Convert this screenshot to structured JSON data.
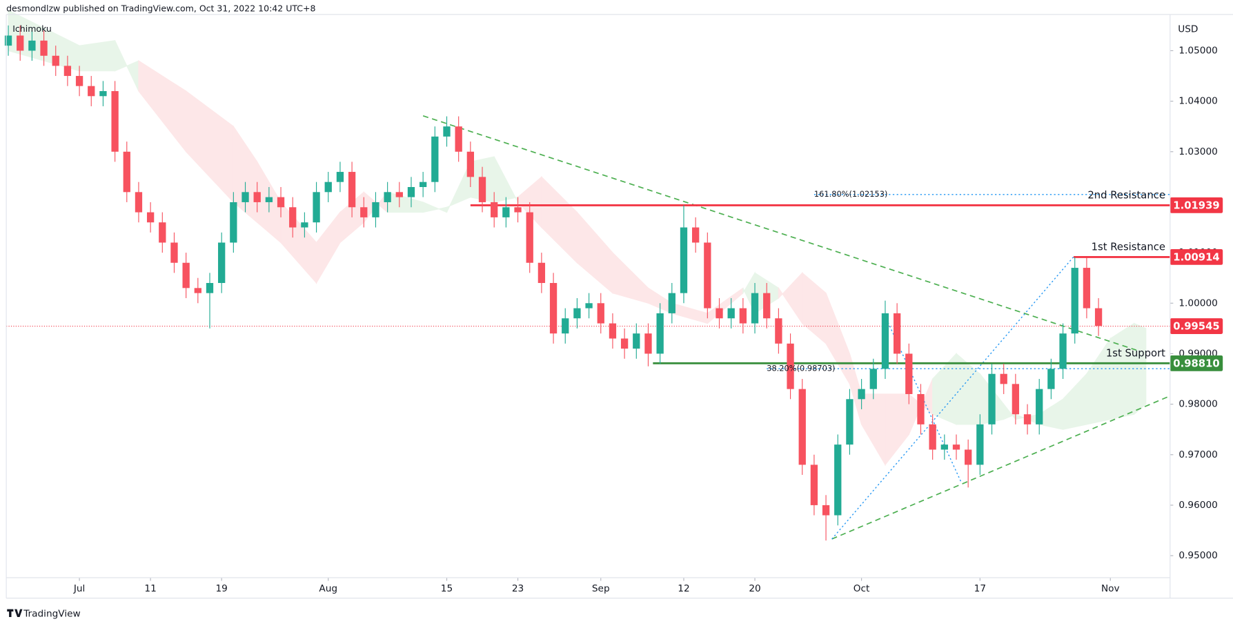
{
  "header": {
    "text": "desmondlzw published on TradingView.com, Oct 31, 2022 10:42 UTC+8",
    "indicator": "Ichimoku"
  },
  "footer": {
    "logo": "TradingView"
  },
  "chart_data": {
    "type": "candlestick",
    "currency": "USD",
    "up_color": "#22ab94",
    "down_color": "#f7525f",
    "xlim": [
      -6.17,
      92.04
    ],
    "ylim": [
      0.94564,
      1.05717
    ],
    "xticks": [
      {
        "value": 0,
        "label": "Jul"
      },
      {
        "value": 6,
        "label": "11"
      },
      {
        "value": 12,
        "label": "19"
      },
      {
        "value": 21,
        "label": "Aug"
      },
      {
        "value": 31,
        "label": "15"
      },
      {
        "value": 37,
        "label": "23"
      },
      {
        "value": 44,
        "label": "Sep"
      },
      {
        "value": 51,
        "label": "12"
      },
      {
        "value": 57,
        "label": "20"
      },
      {
        "value": 66,
        "label": "Oct"
      },
      {
        "value": 76,
        "label": "17"
      },
      {
        "value": 87,
        "label": "Nov"
      }
    ],
    "yticks": [
      {
        "value": 0.95,
        "label": "0.95000"
      },
      {
        "value": 0.96,
        "label": "0.96000"
      },
      {
        "value": 0.97,
        "label": "0.97000"
      },
      {
        "value": 0.98,
        "label": "0.98000"
      },
      {
        "value": 0.99,
        "label": "0.99000"
      },
      {
        "value": 1.0,
        "label": "1.00000"
      },
      {
        "value": 1.01,
        "label": "1.01000"
      },
      {
        "value": 1.02,
        "label": "1.02000"
      },
      {
        "value": 1.03,
        "label": "1.03000"
      },
      {
        "value": 1.04,
        "label": "1.04000"
      },
      {
        "value": 1.05,
        "label": "1.05000"
      }
    ],
    "x": [
      -6,
      -5,
      -4,
      -3,
      -2,
      -1,
      0,
      1,
      2,
      3,
      4,
      5,
      6,
      7,
      8,
      9,
      10,
      11,
      12,
      13,
      14,
      15,
      16,
      17,
      18,
      19,
      20,
      21,
      22,
      23,
      24,
      25,
      26,
      27,
      28,
      29,
      30,
      31,
      32,
      33,
      34,
      35,
      36,
      37,
      38,
      39,
      40,
      41,
      42,
      43,
      44,
      45,
      46,
      47,
      48,
      49,
      50,
      51,
      52,
      53,
      54,
      55,
      56,
      57,
      58,
      59,
      60,
      61,
      62,
      63,
      64,
      65,
      66,
      67,
      68,
      69,
      70,
      71,
      72,
      73,
      74,
      75,
      76,
      77,
      78,
      79,
      80,
      81,
      82,
      83,
      84,
      85,
      86
    ],
    "open": [
      1.051,
      1.053,
      1.05,
      1.052,
      1.049,
      1.047,
      1.045,
      1.043,
      1.041,
      1.042,
      1.03,
      1.022,
      1.018,
      1.016,
      1.012,
      1.008,
      1.003,
      1.002,
      1.004,
      1.012,
      1.02,
      1.022,
      1.02,
      1.021,
      1.019,
      1.015,
      1.016,
      1.022,
      1.024,
      1.026,
      1.019,
      1.017,
      1.02,
      1.022,
      1.021,
      1.023,
      1.024,
      1.033,
      1.035,
      1.03,
      1.025,
      1.02,
      1.017,
      1.019,
      1.018,
      1.008,
      1.004,
      0.994,
      0.997,
      0.999,
      1.0,
      0.996,
      0.993,
      0.991,
      0.994,
      0.99,
      0.998,
      1.002,
      1.015,
      1.012,
      0.999,
      0.997,
      0.999,
      0.996,
      1.002,
      0.997,
      0.992,
      0.983,
      0.968,
      0.96,
      0.958,
      0.972,
      0.981,
      0.983,
      0.987,
      0.998,
      0.99,
      0.982,
      0.976,
      0.971,
      0.972,
      0.971,
      0.968,
      0.976,
      0.986,
      0.984,
      0.978,
      0.976,
      0.983,
      0.987,
      0.994,
      1.007,
      0.999
    ],
    "high": [
      1.055,
      1.055,
      1.054,
      1.054,
      1.051,
      1.049,
      1.047,
      1.045,
      1.044,
      1.044,
      1.032,
      1.024,
      1.02,
      1.018,
      1.014,
      1.01,
      1.005,
      1.006,
      1.014,
      1.022,
      1.024,
      1.024,
      1.023,
      1.023,
      1.021,
      1.018,
      1.024,
      1.026,
      1.028,
      1.028,
      1.021,
      1.022,
      1.024,
      1.024,
      1.025,
      1.026,
      1.035,
      1.037,
      1.037,
      1.032,
      1.027,
      1.022,
      1.021,
      1.021,
      1.02,
      1.01,
      1.006,
      0.999,
      1.001,
      1.002,
      1.002,
      0.998,
      0.995,
      0.996,
      0.996,
      1.0,
      1.004,
      1.0194,
      1.017,
      1.014,
      1.001,
      1.001,
      1.001,
      1.004,
      1.004,
      0.999,
      0.994,
      0.985,
      0.97,
      0.962,
      0.974,
      0.983,
      0.985,
      0.989,
      1.0005,
      1.0,
      0.992,
      0.984,
      0.978,
      0.974,
      0.974,
      0.973,
      0.978,
      0.988,
      0.988,
      0.986,
      0.98,
      0.985,
      0.989,
      0.996,
      1.0091,
      1.009,
      1.001
    ],
    "low": [
      1.049,
      1.048,
      1.048,
      1.047,
      1.045,
      1.043,
      1.041,
      1.039,
      1.039,
      1.028,
      1.02,
      1.016,
      1.014,
      1.01,
      1.006,
      1.001,
      1.0,
      0.995,
      1.002,
      1.01,
      1.018,
      1.018,
      1.018,
      1.017,
      1.013,
      1.013,
      1.014,
      1.02,
      1.022,
      1.017,
      1.015,
      1.015,
      1.018,
      1.019,
      1.019,
      1.021,
      1.022,
      1.031,
      1.028,
      1.023,
      1.018,
      1.015,
      1.015,
      1.016,
      1.006,
      1.002,
      0.992,
      0.992,
      0.995,
      0.997,
      0.994,
      0.991,
      0.989,
      0.989,
      0.9875,
      0.988,
      0.996,
      1.0,
      1.01,
      0.997,
      0.995,
      0.995,
      0.994,
      0.994,
      0.995,
      0.99,
      0.981,
      0.966,
      0.958,
      0.953,
      0.956,
      0.97,
      0.979,
      0.981,
      0.985,
      0.988,
      0.98,
      0.974,
      0.969,
      0.969,
      0.969,
      0.9635,
      0.966,
      0.974,
      0.982,
      0.976,
      0.974,
      0.974,
      0.981,
      0.985,
      0.992,
      0.997,
      0.9935
    ],
    "close": [
      1.053,
      1.05,
      1.052,
      1.049,
      1.047,
      1.045,
      1.043,
      1.041,
      1.042,
      1.03,
      1.022,
      1.018,
      1.016,
      1.012,
      1.008,
      1.003,
      1.002,
      1.004,
      1.012,
      1.02,
      1.022,
      1.02,
      1.021,
      1.019,
      1.015,
      1.016,
      1.022,
      1.024,
      1.026,
      1.019,
      1.017,
      1.02,
      1.022,
      1.021,
      1.023,
      1.024,
      1.033,
      1.035,
      1.03,
      1.025,
      1.02,
      1.017,
      1.019,
      1.018,
      1.008,
      1.004,
      0.994,
      0.997,
      0.999,
      1.0,
      0.996,
      0.993,
      0.991,
      0.994,
      0.99,
      0.998,
      1.002,
      1.015,
      1.012,
      0.999,
      0.997,
      0.999,
      0.996,
      1.002,
      0.997,
      0.992,
      0.983,
      0.968,
      0.96,
      0.958,
      0.972,
      0.981,
      0.983,
      0.987,
      0.998,
      0.99,
      0.982,
      0.976,
      0.971,
      0.972,
      0.971,
      0.968,
      0.976,
      0.986,
      0.984,
      0.978,
      0.976,
      0.983,
      0.987,
      0.994,
      1.007,
      0.999,
      0.9955
    ],
    "cloud": {
      "up_color": "#e8f5e9",
      "down_color": "#fde7e8",
      "x": [
        -6,
        0,
        3,
        5,
        9,
        13,
        15,
        17,
        20,
        22,
        24,
        26,
        29,
        31,
        33,
        35,
        37,
        39,
        42,
        45,
        48,
        50,
        53,
        56,
        57,
        59,
        61,
        63,
        65,
        66,
        68,
        70,
        72,
        74,
        76,
        78,
        79,
        81,
        83,
        85,
        87,
        89,
        90
      ],
      "span_a": [
        1.058,
        1.051,
        1.052,
        1.042,
        1.03,
        1.02,
        1.016,
        1.012,
        1.004,
        1.012,
        1.016,
        1.022,
        1.02,
        1.018,
        1.028,
        1.029,
        1.02,
        1.015,
        1.008,
        1.002,
        1.0,
        0.998,
        0.996,
        1.002,
        1.006,
        1.003,
        0.996,
        0.992,
        0.984,
        0.976,
        0.968,
        0.974,
        0.985,
        0.99,
        0.986,
        0.98,
        0.977,
        0.978,
        0.981,
        0.986,
        0.993,
        0.996,
        0.995
      ],
      "span_b": [
        1.05,
        1.046,
        1.046,
        1.048,
        1.042,
        1.035,
        1.028,
        1.02,
        1.012,
        1.018,
        1.022,
        1.018,
        1.018,
        1.019,
        1.021,
        1.02,
        1.021,
        1.025,
        1.018,
        1.01,
        1.003,
        1.0,
        0.998,
        1.003,
        0.998,
        1.001,
        1.006,
        1.002,
        0.99,
        0.982,
        0.982,
        0.982,
        0.978,
        0.976,
        0.976,
        0.977,
        0.978,
        0.976,
        0.975,
        0.976,
        0.977,
        0.978,
        0.98
      ]
    },
    "last_price": {
      "value": 0.99545,
      "label": "0.99545",
      "color": "#f23645"
    },
    "levels": [
      {
        "name": "2nd Resistance",
        "value": 1.01939,
        "label": "1.01939",
        "x_start": 33,
        "color": "#f23645"
      },
      {
        "name": "1st Resistance",
        "value": 1.00914,
        "label": "1.00914",
        "x_start": 83.9,
        "color": "#f23645"
      },
      {
        "name": "1st Support",
        "value": 0.9881,
        "label": "0.98810",
        "x_start": 48.4,
        "color": "#388e3c"
      }
    ],
    "fibs": [
      {
        "label": "161.80%(1.02153)",
        "value": 1.02153,
        "x_start": 62,
        "color": "#2196f3"
      },
      {
        "label": "38.20%(0.98703)",
        "value": 0.98703,
        "x_start": 58,
        "color": "#2196f3"
      }
    ],
    "trendlines": [
      {
        "x": [
          29,
          89.2
        ],
        "y": [
          1.0371,
          0.9907
        ],
        "color": "#4caf50",
        "style": "dashed"
      },
      {
        "x": [
          63.5,
          92
        ],
        "y": [
          0.9533,
          0.9816
        ],
        "color": "#4caf50",
        "style": "dashed"
      },
      {
        "x": [
          63.5,
          83.9
        ],
        "y": [
          0.9533,
          1.0092
        ],
        "color": "#2196f3",
        "style": "dotted"
      },
      {
        "x": [
          68.1,
          74.4
        ],
        "y": [
          0.9969,
          0.9646
        ],
        "color": "#2196f3",
        "style": "dotted"
      }
    ]
  }
}
